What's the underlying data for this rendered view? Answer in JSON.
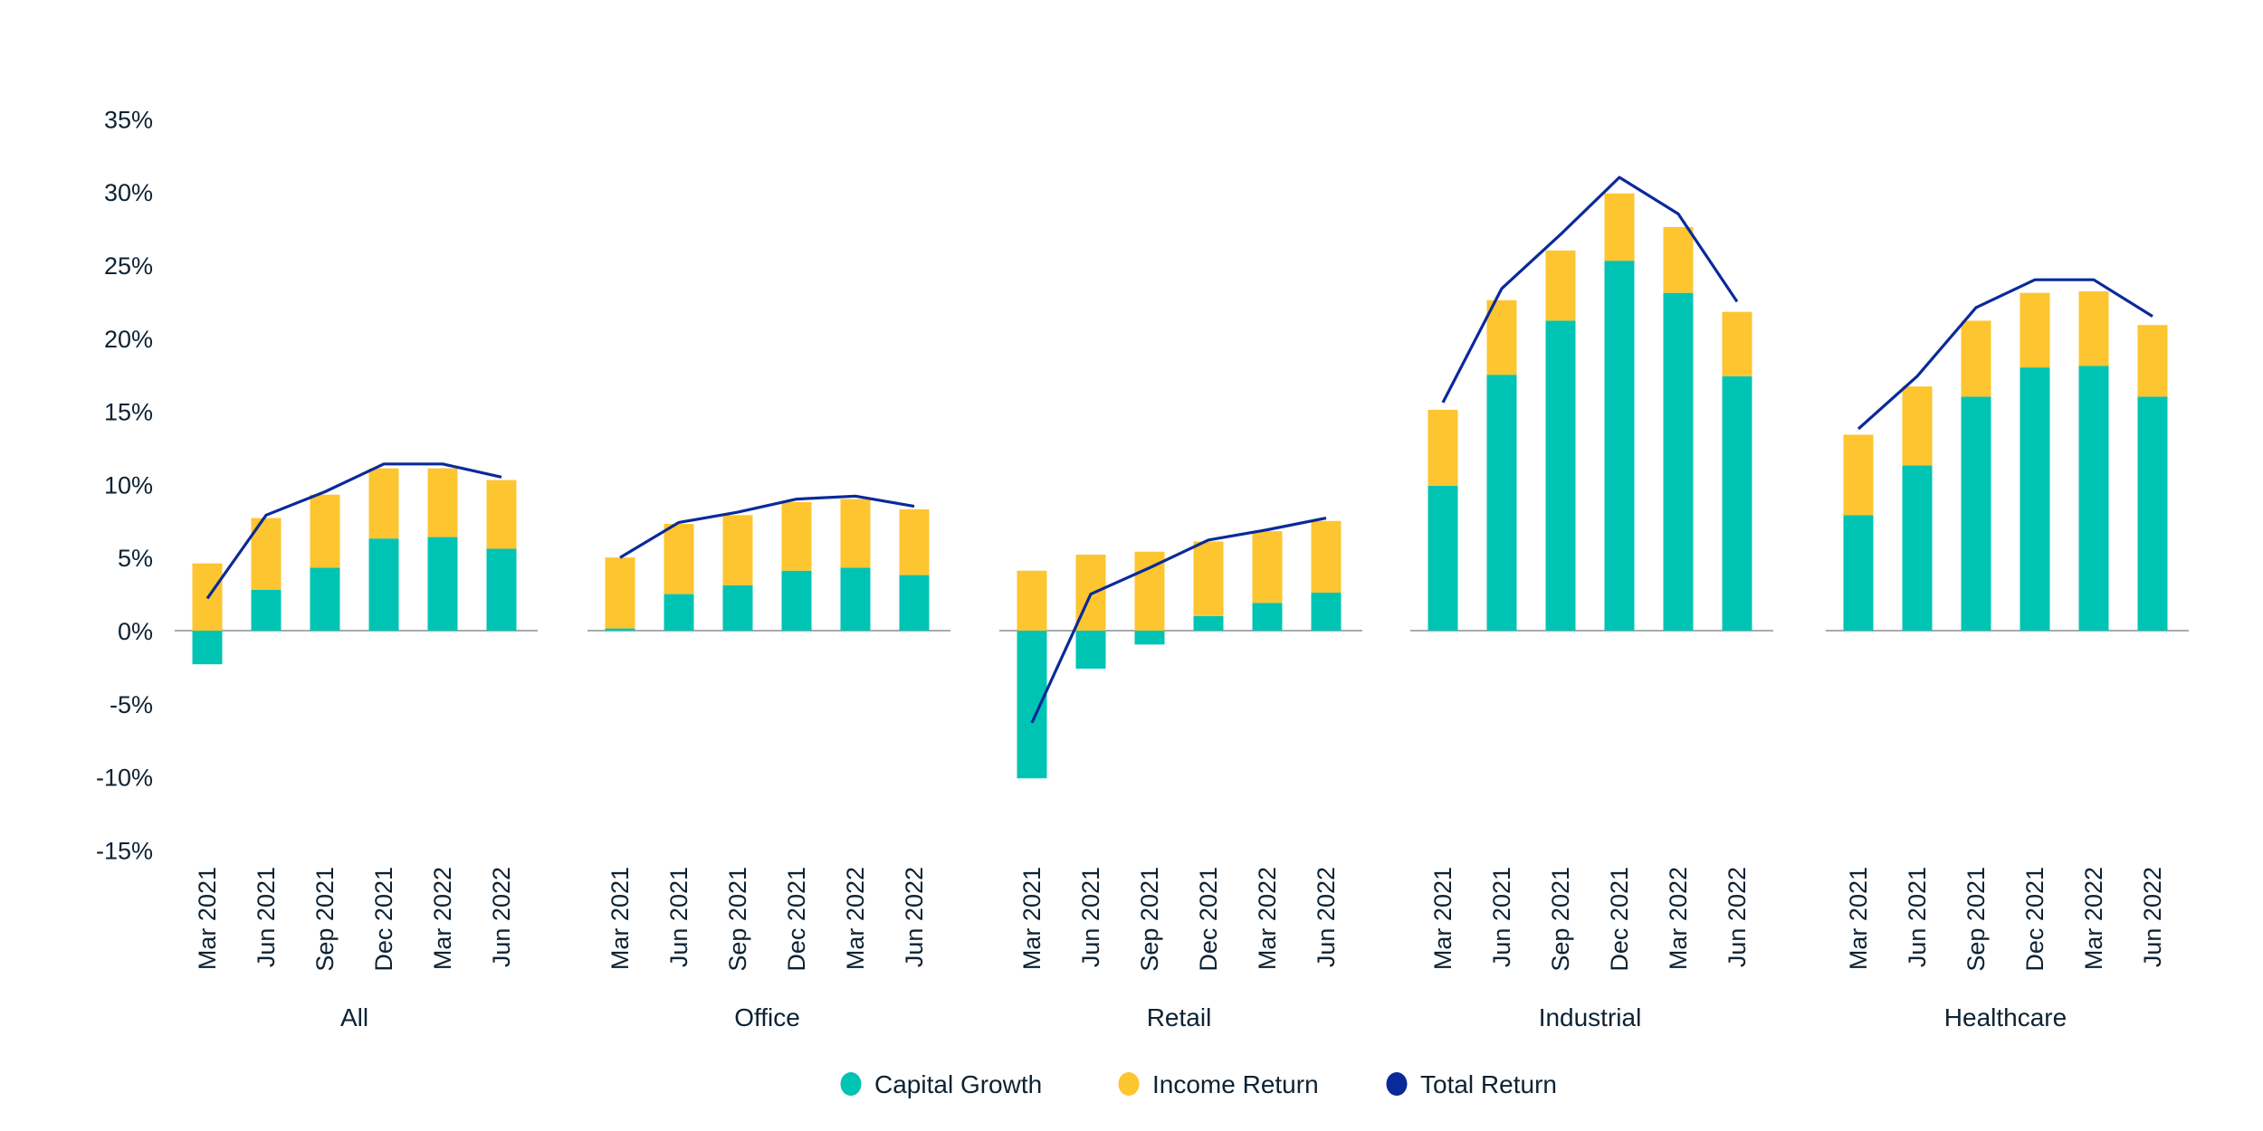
{
  "chart_data": {
    "type": "bar",
    "stacked": true,
    "title": "",
    "xlabel": "",
    "ylabel": "",
    "ylim": [
      -15,
      35
    ],
    "y_ticks": [
      35,
      30,
      25,
      20,
      15,
      10,
      5,
      0,
      -5,
      -10,
      -15
    ],
    "y_tick_labels": [
      "35%",
      "30%",
      "25%",
      "20%",
      "15%",
      "10%",
      "5%",
      "0%",
      "-5%",
      "-10%",
      "-15%"
    ],
    "grid": false,
    "legend_position": "bottom",
    "categories": [
      "Mar 2021",
      "Jun 2021",
      "Sep 2021",
      "Dec 2021",
      "Mar 2022",
      "Jun 2022"
    ],
    "groups": [
      {
        "name": "All",
        "capital_growth": [
          -2.3,
          2.8,
          4.3,
          6.3,
          6.4,
          5.6
        ],
        "income_return": [
          4.6,
          4.9,
          5.0,
          4.8,
          4.7,
          4.7
        ],
        "total_return": [
          2.2,
          7.9,
          9.5,
          11.4,
          11.4,
          10.5
        ]
      },
      {
        "name": "Office",
        "capital_growth": [
          0.15,
          2.5,
          3.1,
          4.1,
          4.3,
          3.8
        ],
        "income_return": [
          4.85,
          4.8,
          4.8,
          4.7,
          4.7,
          4.5
        ],
        "total_return": [
          5.0,
          7.4,
          8.1,
          9.0,
          9.2,
          8.5
        ]
      },
      {
        "name": "Retail",
        "capital_growth": [
          -10.1,
          -2.6,
          -0.95,
          1.0,
          1.9,
          2.6
        ],
        "income_return": [
          4.1,
          5.2,
          5.4,
          5.1,
          4.9,
          4.9
        ],
        "total_return": [
          -6.3,
          2.5,
          4.3,
          6.2,
          6.9,
          7.7
        ]
      },
      {
        "name": "Industrial",
        "capital_growth": [
          9.9,
          17.5,
          21.2,
          25.3,
          23.1,
          17.4
        ],
        "income_return": [
          5.2,
          5.1,
          4.8,
          4.6,
          4.5,
          4.4
        ],
        "total_return": [
          15.6,
          23.4,
          27.1,
          31.0,
          28.5,
          22.5
        ]
      },
      {
        "name": "Healthcare",
        "capital_growth": [
          7.9,
          11.3,
          16.0,
          18.0,
          18.1,
          16.0
        ],
        "income_return": [
          5.5,
          5.4,
          5.2,
          5.1,
          5.1,
          4.9
        ],
        "total_return": [
          13.8,
          17.4,
          22.1,
          24.0,
          24.0,
          21.5
        ]
      }
    ],
    "series": [
      {
        "name": "Capital Growth",
        "type": "bar",
        "color": "#00C4B3"
      },
      {
        "name": "Income Return",
        "type": "bar",
        "color": "#FDC52F"
      },
      {
        "name": "Total Return",
        "type": "line",
        "color": "#0A2A9A"
      }
    ]
  }
}
